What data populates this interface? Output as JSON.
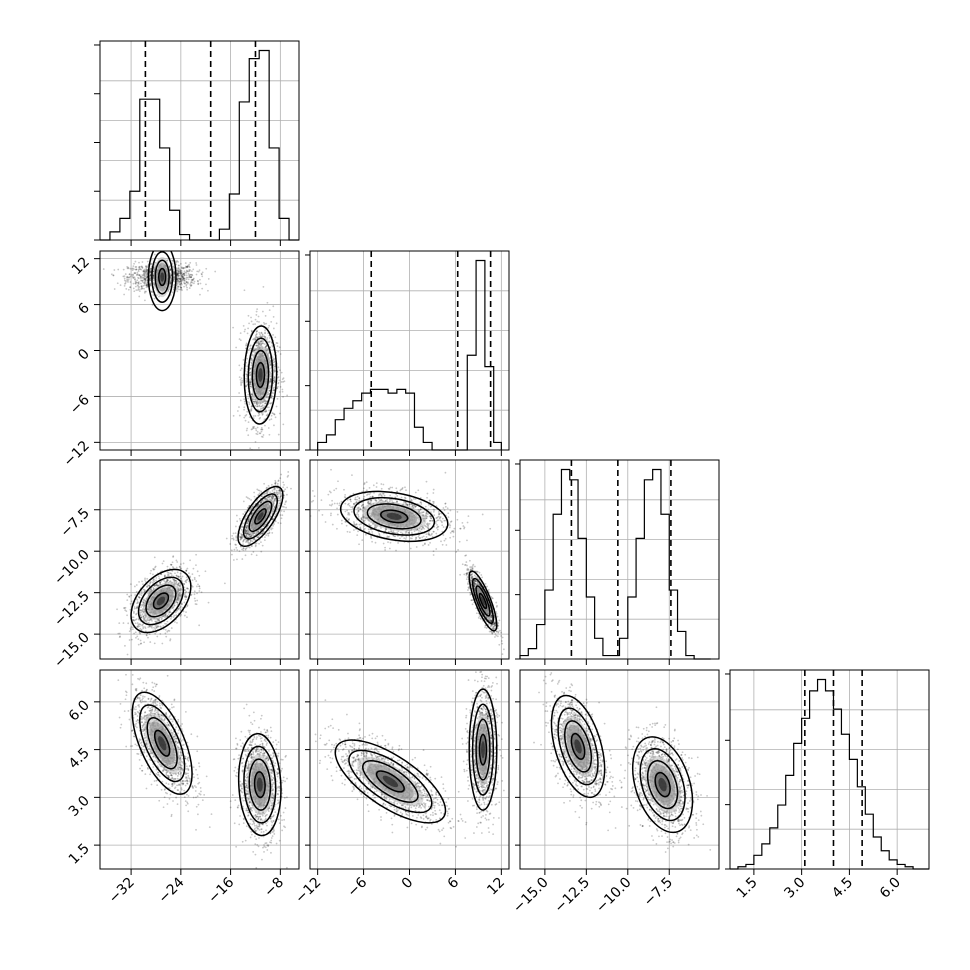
{
  "chart_data": {
    "type": "corner",
    "grid": true,
    "parameters": [
      {
        "range": [
          -37,
          -5
        ],
        "ticks": [
          -32,
          -24,
          -16,
          -8
        ],
        "tick_labels": [
          "−32",
          "−24",
          "−16",
          "−8"
        ],
        "quantiles": [
          -29.7,
          -19.2,
          -12.0
        ],
        "hist": {
          "edges": [
            -37,
            -35.4,
            -33.8,
            -32.2,
            -30.6,
            -29,
            -27.4,
            -25.8,
            -24.2,
            -22.6,
            -21,
            -19.4,
            -17.8,
            -16.2,
            -14.6,
            -13,
            -11.4,
            -9.8,
            -8.2,
            -6.6,
            -5
          ],
          "counts": [
            0,
            3,
            8,
            18,
            52,
            52,
            34,
            11,
            2,
            0,
            0,
            0,
            4,
            17,
            51,
            67,
            70,
            34,
            8,
            0
          ]
        },
        "modes": [
          {
            "center": -28.3,
            "sd": 2.2
          },
          {
            "center": -11.3,
            "sd": 1.8
          }
        ]
      },
      {
        "range": [
          -13,
          13
        ],
        "ticks": [
          -12,
          -6,
          0,
          6,
          12
        ],
        "tick_labels": [
          "−12",
          "−6",
          "0",
          "6",
          "12"
        ],
        "quantiles": [
          -5.0,
          6.3,
          10.6
        ],
        "hist": {
          "edges": [
            -12.0,
            -10.85,
            -9.7,
            -8.55,
            -7.4,
            -6.25,
            -5.1,
            -3.95,
            -2.8,
            -1.65,
            -0.5,
            0.65,
            1.8,
            2.95,
            4.1,
            5.25,
            6.4,
            7.55,
            8.7,
            9.85,
            11.0,
            12.0
          ],
          "counts": [
            2,
            4,
            8,
            11,
            13,
            15,
            16,
            16,
            15,
            16,
            15,
            6,
            2,
            0,
            0,
            0,
            0,
            25,
            50,
            22,
            2
          ]
        },
        "modes": [
          {
            "center": 9.6,
            "sd": 0.9
          },
          {
            "center": -3.0,
            "sd": 4.0
          }
        ]
      },
      {
        "range": [
          -16.5,
          -4.5
        ],
        "ticks": [
          -15.0,
          -12.5,
          -10.0,
          -7.5
        ],
        "tick_labels": [
          "−15.0",
          "−12.5",
          "−10.0",
          "−7.5"
        ],
        "quantiles": [
          -13.4,
          -10.6,
          -7.4
        ],
        "hist": {
          "edges": [
            -16.5,
            -16.0,
            -15.5,
            -15.0,
            -14.5,
            -14.0,
            -13.5,
            -13.0,
            -12.5,
            -12.0,
            -11.5,
            -11.0,
            -10.5,
            -10.0,
            -9.5,
            -9.0,
            -8.5,
            -8.0,
            -7.5,
            -7.0,
            -6.5,
            -6.0,
            -5.5,
            -5.0
          ],
          "counts": [
            1,
            3,
            10,
            20,
            42,
            55,
            52,
            35,
            18,
            6,
            1,
            1,
            6,
            18,
            35,
            52,
            55,
            42,
            20,
            8,
            1,
            0,
            0
          ]
        },
        "modes": [
          {
            "center": -13.0,
            "sd": 0.8
          },
          {
            "center": -7.9,
            "sd": 0.8
          }
        ]
      },
      {
        "range": [
          0.75,
          7.0
        ],
        "ticks": [
          1.5,
          3.0,
          4.5,
          6.0
        ],
        "tick_labels": [
          "1.5",
          "3.0",
          "4.5",
          "6.0"
        ],
        "quantiles": [
          3.1,
          4.0,
          4.9
        ],
        "hist": {
          "edges": [
            0.75,
            1.0,
            1.25,
            1.5,
            1.75,
            2.0,
            2.25,
            2.5,
            2.75,
            3.0,
            3.25,
            3.5,
            3.75,
            4.0,
            4.25,
            4.5,
            4.75,
            5.0,
            5.25,
            5.5,
            5.75,
            6.0,
            6.25,
            6.5,
            6.75,
            7.0
          ],
          "counts": [
            0,
            1,
            2,
            6,
            11,
            18,
            28,
            41,
            55,
            66,
            78,
            83,
            78,
            70,
            59,
            48,
            36,
            24,
            14,
            8,
            4,
            2,
            1,
            0,
            0
          ]
        },
        "modes": [
          {
            "center": 4.0,
            "sd": 0.9
          }
        ]
      }
    ],
    "pairs": [
      {
        "row": 1,
        "col": 0,
        "clusters": [
          {
            "mx": -27.0,
            "my": 9.6,
            "sx": 2.7,
            "sy": 0.9,
            "rho": 0.0,
            "n": 1100
          },
          {
            "mx": -11.2,
            "my": -3.2,
            "sx": 1.3,
            "sy": 3.2,
            "rho": 0.05,
            "n": 1300
          }
        ]
      },
      {
        "row": 2,
        "col": 0,
        "clusters": [
          {
            "mx": -27.2,
            "my": -13.0,
            "sx": 2.4,
            "sy": 0.95,
            "rho": 0.45,
            "n": 1200
          },
          {
            "mx": -11.2,
            "my": -7.9,
            "sx": 1.8,
            "sy": 0.9,
            "rho": 0.7,
            "n": 1200
          }
        ]
      },
      {
        "row": 2,
        "col": 1,
        "clusters": [
          {
            "mx": -2.0,
            "my": -7.9,
            "sx": 3.5,
            "sy": 0.75,
            "rho": -0.3,
            "n": 1300
          },
          {
            "mx": 9.6,
            "my": -13.0,
            "sx": 0.9,
            "sy": 0.9,
            "rho": -0.8,
            "n": 1100
          }
        ]
      },
      {
        "row": 3,
        "col": 0,
        "clusters": [
          {
            "mx": -27.0,
            "my": 4.7,
            "sx": 2.4,
            "sy": 0.8,
            "rho": -0.6,
            "n": 1200
          },
          {
            "mx": -11.3,
            "my": 3.4,
            "sx": 1.7,
            "sy": 0.8,
            "rho": -0.1,
            "n": 1200
          }
        ]
      },
      {
        "row": 3,
        "col": 1,
        "clusters": [
          {
            "mx": -2.5,
            "my": 3.5,
            "sx": 3.6,
            "sy": 0.65,
            "rho": -0.7,
            "n": 1300
          },
          {
            "mx": 9.6,
            "my": 4.5,
            "sx": 0.9,
            "sy": 0.95,
            "rho": 0.0,
            "n": 1100
          }
        ]
      },
      {
        "row": 3,
        "col": 2,
        "clusters": [
          {
            "mx": -13.0,
            "my": 4.6,
            "sx": 0.8,
            "sy": 0.8,
            "rho": -0.45,
            "n": 1200
          },
          {
            "mx": -7.9,
            "my": 3.4,
            "sx": 0.9,
            "sy": 0.75,
            "rho": -0.35,
            "n": 1200
          }
        ]
      }
    ]
  }
}
